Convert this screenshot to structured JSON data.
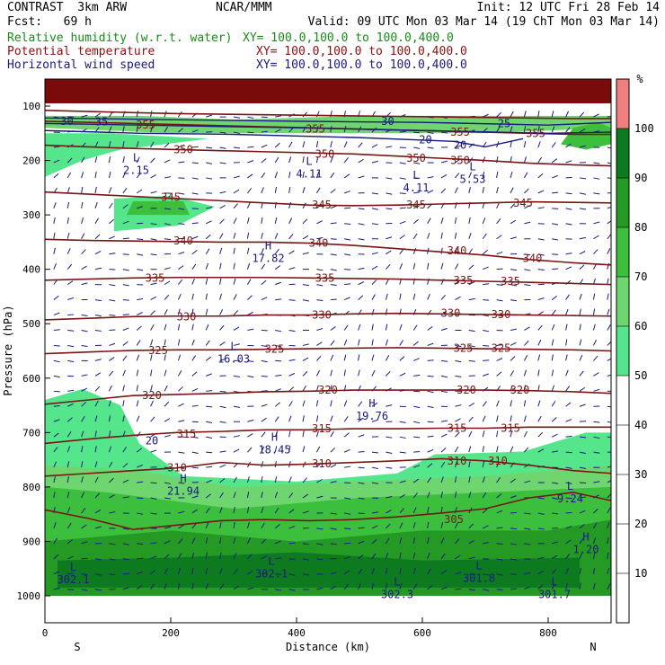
{
  "header": {
    "left1": "CONTRAST  3km ARW",
    "center1": "NCAR/MMM",
    "right1": "Init: 12 UTC Fri 28 Feb 14",
    "left2": "Fcst:   69 h",
    "right2": "Valid: 09 UTC Mon 03 Mar 14 (19 ChT Mon 03 Mar 14)",
    "fields": [
      {
        "label": "Relative humidity (w.r.t. water)",
        "xy": "XY= 100.0,100.0 to 100.0,400.0",
        "color": "#1a8a1a"
      },
      {
        "label": "Potential temperature",
        "xy": "XY= 100.0,100.0 to 100.0,400.0",
        "color": "#8b1010"
      },
      {
        "label": "Horizontal wind speed",
        "xy": "XY= 100.0,100.0 to 100.0,400.0",
        "color": "#1a1a80"
      }
    ]
  },
  "chart_data": {
    "type": "heatmap",
    "xlabel": "Distance (km)",
    "ylabel": "Pressure (hPa)",
    "xlim": [
      0,
      900
    ],
    "ylim": [
      1000,
      60
    ],
    "x_ticks": [
      0,
      200,
      400,
      600,
      800
    ],
    "y_ticks": [
      100,
      200,
      300,
      400,
      500,
      600,
      700,
      800,
      900,
      1000
    ],
    "x_end_labels": {
      "left": "S",
      "right": "N"
    },
    "colorbar": {
      "unit": "%",
      "levels": [
        10,
        20,
        30,
        40,
        50,
        60,
        70,
        80,
        90,
        100
      ],
      "colors": [
        "#ffffff",
        "#ffffff",
        "#ffffff",
        "#ffffff",
        "#ffffff",
        "#55e68c",
        "#6fd66f",
        "#3cbf3c",
        "#249a24",
        "#0e7a20",
        "#f08080"
      ]
    },
    "theta_contours": [
      {
        "level": 305,
        "p": [
          842,
          858,
          878,
          870,
          862,
          860,
          862,
          860,
          855,
          848,
          840,
          820,
          810,
          825
        ]
      },
      {
        "level": 310,
        "p": [
          780,
          775,
          770,
          765,
          755,
          760,
          758,
          755,
          752,
          748,
          752,
          760,
          770,
          775
        ]
      },
      {
        "level": 315,
        "p": [
          720,
          712,
          705,
          700,
          698,
          695,
          695,
          693,
          693,
          692,
          692,
          690,
          690,
          690
        ]
      },
      {
        "level": 320,
        "p": [
          648,
          640,
          632,
          630,
          628,
          625,
          624,
          622,
          622,
          622,
          622,
          623,
          625,
          628
        ]
      },
      {
        "level": 325,
        "p": [
          555,
          552,
          549,
          548,
          548,
          547,
          546,
          545,
          544,
          545,
          546,
          547,
          548,
          550
        ]
      },
      {
        "level": 330,
        "p": [
          493,
          490,
          487,
          486,
          486,
          484,
          484,
          482,
          481,
          482,
          483,
          484,
          485,
          486
        ]
      },
      {
        "level": 335,
        "p": [
          420,
          418,
          416,
          415,
          415,
          415,
          416,
          417,
          418,
          420,
          422,
          424,
          426,
          428
        ]
      },
      {
        "level": 340,
        "p": [
          345,
          347,
          348,
          349,
          350,
          350,
          352,
          356,
          362,
          368,
          374,
          382,
          388,
          392
        ]
      },
      {
        "level": 345,
        "p": [
          258,
          262,
          266,
          270,
          274,
          278,
          282,
          283,
          282,
          280,
          278,
          276,
          277,
          278
        ]
      },
      {
        "level": 350,
        "p": [
          172,
          175,
          178,
          180,
          182,
          184,
          186,
          188,
          192,
          196,
          200,
          205,
          208,
          210
        ]
      },
      {
        "level": 355,
        "p": [
          128,
          130,
          132,
          134,
          136,
          138,
          140,
          142,
          144,
          146,
          148,
          150,
          152,
          152
        ]
      },
      {
        "level": 360,
        "p": [
          108,
          110,
          112,
          114,
          115,
          116,
          117,
          118,
          119,
          120,
          121,
          122,
          123,
          123
        ]
      }
    ],
    "contour_x": [
      0,
      70,
      140,
      210,
      280,
      350,
      420,
      490,
      560,
      630,
      700,
      770,
      840,
      900
    ],
    "theta_labels": [
      {
        "t": "305",
        "x": 650,
        "p": 860
      },
      {
        "t": "310",
        "x": 210,
        "p": 765
      },
      {
        "t": "310",
        "x": 440,
        "p": 757
      },
      {
        "t": "310",
        "x": 655,
        "p": 752
      },
      {
        "t": "310",
        "x": 720,
        "p": 752
      },
      {
        "t": "315",
        "x": 225,
        "p": 703
      },
      {
        "t": "315",
        "x": 440,
        "p": 693
      },
      {
        "t": "315",
        "x": 655,
        "p": 692
      },
      {
        "t": "315",
        "x": 740,
        "p": 692
      },
      {
        "t": "320",
        "x": 170,
        "p": 632
      },
      {
        "t": "320",
        "x": 450,
        "p": 622
      },
      {
        "t": "320",
        "x": 670,
        "p": 622
      },
      {
        "t": "320",
        "x": 755,
        "p": 622
      },
      {
        "t": "325",
        "x": 180,
        "p": 549
      },
      {
        "t": "325",
        "x": 365,
        "p": 547
      },
      {
        "t": "325",
        "x": 665,
        "p": 545
      },
      {
        "t": "325",
        "x": 725,
        "p": 545
      },
      {
        "t": "330",
        "x": 225,
        "p": 487
      },
      {
        "t": "330",
        "x": 440,
        "p": 484
      },
      {
        "t": "330",
        "x": 645,
        "p": 481
      },
      {
        "t": "330",
        "x": 725,
        "p": 483
      },
      {
        "t": "335",
        "x": 175,
        "p": 416
      },
      {
        "t": "335",
        "x": 445,
        "p": 416
      },
      {
        "t": "335",
        "x": 665,
        "p": 420
      },
      {
        "t": "335",
        "x": 740,
        "p": 422
      },
      {
        "t": "340",
        "x": 220,
        "p": 348
      },
      {
        "t": "340",
        "x": 435,
        "p": 352
      },
      {
        "t": "340",
        "x": 655,
        "p": 366
      },
      {
        "t": "340",
        "x": 775,
        "p": 380
      },
      {
        "t": "345",
        "x": 200,
        "p": 268
      },
      {
        "t": "345",
        "x": 440,
        "p": 282
      },
      {
        "t": "345",
        "x": 590,
        "p": 282
      },
      {
        "t": "345",
        "x": 760,
        "p": 278
      },
      {
        "t": "350",
        "x": 220,
        "p": 180
      },
      {
        "t": "350",
        "x": 445,
        "p": 188
      },
      {
        "t": "350",
        "x": 590,
        "p": 196
      },
      {
        "t": "350",
        "x": 660,
        "p": 200
      },
      {
        "t": "355",
        "x": 160,
        "p": 135
      },
      {
        "t": "355",
        "x": 430,
        "p": 142
      },
      {
        "t": "355",
        "x": 660,
        "p": 148
      },
      {
        "t": "355",
        "x": 780,
        "p": 150
      }
    ],
    "wind_labels": [
      {
        "t": "30",
        "x": 35,
        "p": 128
      },
      {
        "t": "35",
        "x": 90,
        "p": 129
      },
      {
        "t": "30",
        "x": 545,
        "p": 128
      },
      {
        "t": "25",
        "x": 730,
        "p": 132
      },
      {
        "t": "20",
        "x": 605,
        "p": 162
      },
      {
        "t": "20",
        "x": 660,
        "p": 172
      },
      {
        "t": "20",
        "x": 170,
        "p": 715
      }
    ],
    "extrema": [
      {
        "t": "L",
        "v": "2.15",
        "x": 145,
        "p": 208
      },
      {
        "t": "L",
        "v": "4.11",
        "x": 420,
        "p": 215
      },
      {
        "t": "L",
        "v": "4.11",
        "x": 590,
        "p": 240
      },
      {
        "t": "L",
        "v": "5.53",
        "x": 680,
        "p": 225
      },
      {
        "t": "H",
        "v": "17.82",
        "x": 355,
        "p": 370
      },
      {
        "t": "L",
        "v": "16.03",
        "x": 300,
        "p": 555
      },
      {
        "t": "H",
        "v": "19.76",
        "x": 520,
        "p": 660
      },
      {
        "t": "H",
        "v": "18.45",
        "x": 365,
        "p": 722
      },
      {
        "t": "H",
        "v": "21.94",
        "x": 220,
        "p": 798
      },
      {
        "t": "L",
        "v": "9.24",
        "x": 835,
        "p": 812
      },
      {
        "t": "H",
        "v": "1.20",
        "x": 860,
        "p": 905
      },
      {
        "t": "L",
        "v": "302.1",
        "x": 45,
        "p": 960
      },
      {
        "t": "L",
        "v": "302.1",
        "x": 360,
        "p": 950
      },
      {
        "t": "L",
        "v": "302.3",
        "x": 560,
        "p": 988
      },
      {
        "t": "L",
        "v": "301.8",
        "x": 690,
        "p": 958
      },
      {
        "t": "L",
        "v": "301.7",
        "x": 810,
        "p": 988
      }
    ]
  }
}
